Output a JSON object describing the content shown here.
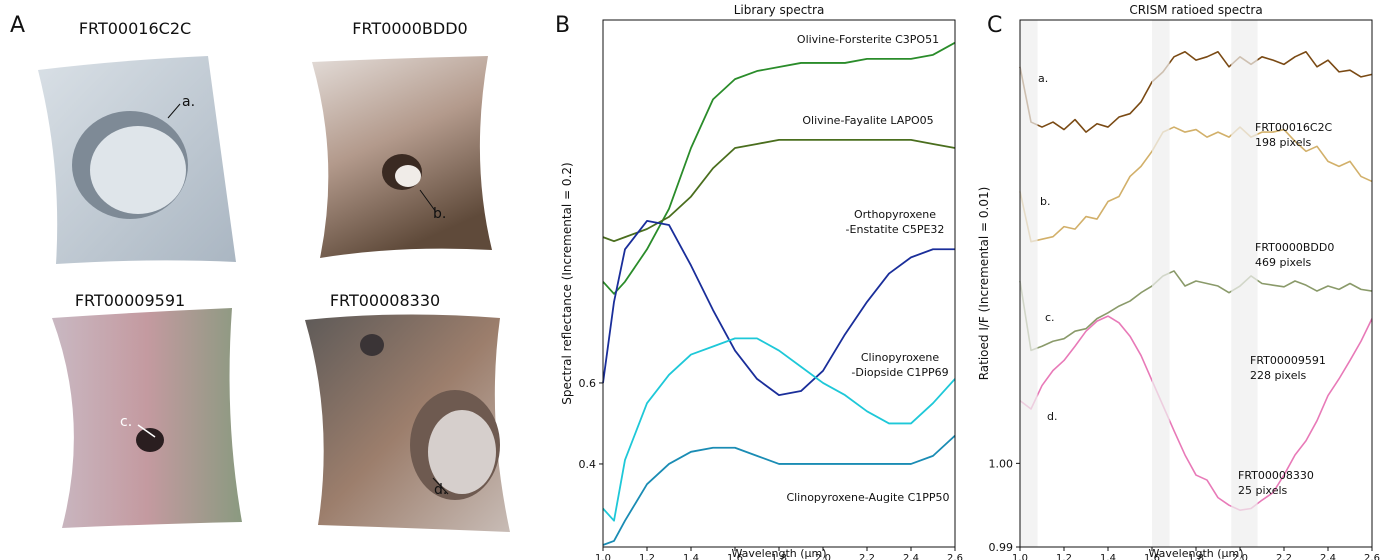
{
  "panels": [
    "A",
    "B",
    "C"
  ],
  "images": [
    {
      "title": "FRT00016C2C",
      "label": "a."
    },
    {
      "title": "FRT0000BDD0",
      "label": "b."
    },
    {
      "title": "FRT00009591",
      "label": "c."
    },
    {
      "title": "FRT00008330",
      "label": "d."
    }
  ],
  "chart_data": [
    {
      "type": "line",
      "title": "Library spectra",
      "xlabel": "Wavelength (μm)",
      "ylabel": "Spectral reflectance (Incremental = 0.2)",
      "x": [
        1.0,
        1.05,
        1.1,
        1.2,
        1.3,
        1.4,
        1.5,
        1.6,
        1.7,
        1.8,
        1.9,
        2.0,
        2.1,
        2.2,
        2.3,
        2.4,
        2.5,
        2.6
      ],
      "xlim": [
        1.0,
        2.6
      ],
      "xticks": [
        {
          "value": 1,
          "label": "1.0"
        },
        1.2,
        1.4,
        1.6,
        1.8,
        {
          "value": 2,
          "label": "2.0"
        },
        2.2,
        2.4,
        2.6
      ],
      "ylim": [
        0.195,
        1.496
      ],
      "yticks": [
        0.4,
        0.6
      ],
      "series": [
        {
          "name": "Olivine-Forsterite C3PO51",
          "color": "#2a8c2a",
          "values": [
            0.85,
            0.82,
            0.85,
            0.93,
            1.03,
            1.18,
            1.3,
            1.35,
            1.37,
            1.38,
            1.39,
            1.39,
            1.39,
            1.4,
            1.4,
            1.4,
            1.41,
            1.44
          ]
        },
        {
          "name": "Olivine-Fayalite LAPO05",
          "color": "#4a6e1e",
          "values": [
            0.96,
            0.95,
            0.96,
            0.98,
            1.01,
            1.06,
            1.13,
            1.18,
            1.19,
            1.2,
            1.2,
            1.2,
            1.2,
            1.2,
            1.2,
            1.2,
            1.19,
            1.18
          ]
        },
        {
          "name": "Orthopyroxene\n-Enstatite C5PE32",
          "color": "#1a2e9a",
          "values": [
            0.6,
            0.8,
            0.93,
            1.0,
            0.99,
            0.89,
            0.78,
            0.68,
            0.61,
            0.57,
            0.58,
            0.63,
            0.72,
            0.8,
            0.87,
            0.91,
            0.93,
            0.93
          ]
        },
        {
          "name": "Clinopyroxene\n-Diopside C1PP69",
          "color": "#1ec8d8",
          "values": [
            0.29,
            0.26,
            0.41,
            0.55,
            0.62,
            0.67,
            0.69,
            0.71,
            0.71,
            0.68,
            0.64,
            0.6,
            0.57,
            0.53,
            0.5,
            0.5,
            0.55,
            0.61
          ]
        },
        {
          "name": "Clinopyroxene-Augite C1PP50",
          "color": "#1a8cb4",
          "values": [
            0.2,
            0.21,
            0.26,
            0.35,
            0.4,
            0.43,
            0.44,
            0.44,
            0.42,
            0.4,
            0.4,
            0.4,
            0.4,
            0.4,
            0.4,
            0.4,
            0.42,
            0.47
          ]
        }
      ]
    },
    {
      "type": "line",
      "title": "CRISM ratioed spectra",
      "xlabel": "Wavelength (μm)",
      "ylabel": "Ratioed I/F (Incremental = 0.01)",
      "x": [
        1.0,
        1.05,
        1.1,
        1.15,
        1.2,
        1.25,
        1.3,
        1.35,
        1.4,
        1.45,
        1.5,
        1.55,
        1.6,
        1.65,
        1.7,
        1.75,
        1.8,
        1.85,
        1.9,
        1.95,
        2.0,
        2.05,
        2.1,
        2.15,
        2.2,
        2.25,
        2.3,
        2.35,
        2.4,
        2.45,
        2.5,
        2.55,
        2.6
      ],
      "xlim": [
        1.0,
        2.6
      ],
      "xticks": [
        {
          "value": 1,
          "label": "1.0"
        },
        1.2,
        1.4,
        1.6,
        1.8,
        {
          "value": 2,
          "label": "2.0"
        },
        2.2,
        2.4,
        2.6
      ],
      "ylim": [
        0.99,
        1.053
      ],
      "yticks": [
        0.99,
        {
          "value": 1,
          "label": "1.00"
        }
      ],
      "highlight_ranges": [
        [
          1.0,
          1.08
        ],
        [
          1.6,
          1.68
        ],
        [
          1.96,
          2.08
        ]
      ],
      "series": [
        {
          "name": "FRT00016C2C",
          "label": "a.",
          "note": "198 pixels",
          "color": "#7a4a14",
          "values": [
            1.0474,
            1.0408,
            1.0402,
            1.0408,
            1.0399,
            1.0411,
            1.0396,
            1.0406,
            1.0402,
            1.0414,
            1.0418,
            1.0432,
            1.0456,
            1.0468,
            1.0486,
            1.0492,
            1.0482,
            1.0486,
            1.0492,
            1.0474,
            1.0486,
            1.0477,
            1.0486,
            1.0482,
            1.0477,
            1.0486,
            1.0492,
            1.0474,
            1.0482,
            1.0468,
            1.047,
            1.0462,
            1.0465
          ]
        },
        {
          "name": "FRT0000BDD0",
          "label": "b.",
          "note": "469 pixels",
          "color": "#d2b06a",
          "values": [
            1.0325,
            1.0265,
            1.0268,
            1.0271,
            1.0283,
            1.028,
            1.0295,
            1.0292,
            1.0313,
            1.0319,
            1.0343,
            1.0355,
            1.0373,
            1.0396,
            1.0402,
            1.0396,
            1.0399,
            1.039,
            1.0396,
            1.039,
            1.0402,
            1.039,
            1.0396,
            1.0396,
            1.0399,
            1.0385,
            1.0373,
            1.0379,
            1.0361,
            1.0355,
            1.0361,
            1.0343,
            1.0337
          ]
        },
        {
          "name": "FRT00009591",
          "label": "c.",
          "note": "228 pixels",
          "color": "#8a9a6a",
          "values": [
            1.0218,
            1.0135,
            1.014,
            1.0146,
            1.0149,
            1.0158,
            1.0161,
            1.0173,
            1.018,
            1.0188,
            1.0194,
            1.0204,
            1.0212,
            1.0224,
            1.023,
            1.0212,
            1.0218,
            1.0215,
            1.0212,
            1.0204,
            1.0212,
            1.0224,
            1.0215,
            1.0213,
            1.0211,
            1.0218,
            1.0213,
            1.0206,
            1.0212,
            1.0208,
            1.0215,
            1.0208,
            1.0206
          ]
        },
        {
          "name": "FRT00008330",
          "label": "d.",
          "note": "25 pixels",
          "color": "#e87ab8",
          "values": [
            1.0075,
            1.0065,
            1.0093,
            1.0111,
            1.0123,
            1.014,
            1.0158,
            1.017,
            1.0176,
            1.0168,
            1.0152,
            1.0129,
            1.0099,
            1.0069,
            1.0039,
            1.001,
            0.9986,
            0.998,
            0.9959,
            0.995,
            0.9944,
            0.9946,
            0.9956,
            0.9965,
            0.9986,
            1.001,
            1.0027,
            1.0051,
            1.0081,
            1.0101,
            1.0123,
            1.0146,
            1.0173
          ]
        }
      ]
    }
  ]
}
